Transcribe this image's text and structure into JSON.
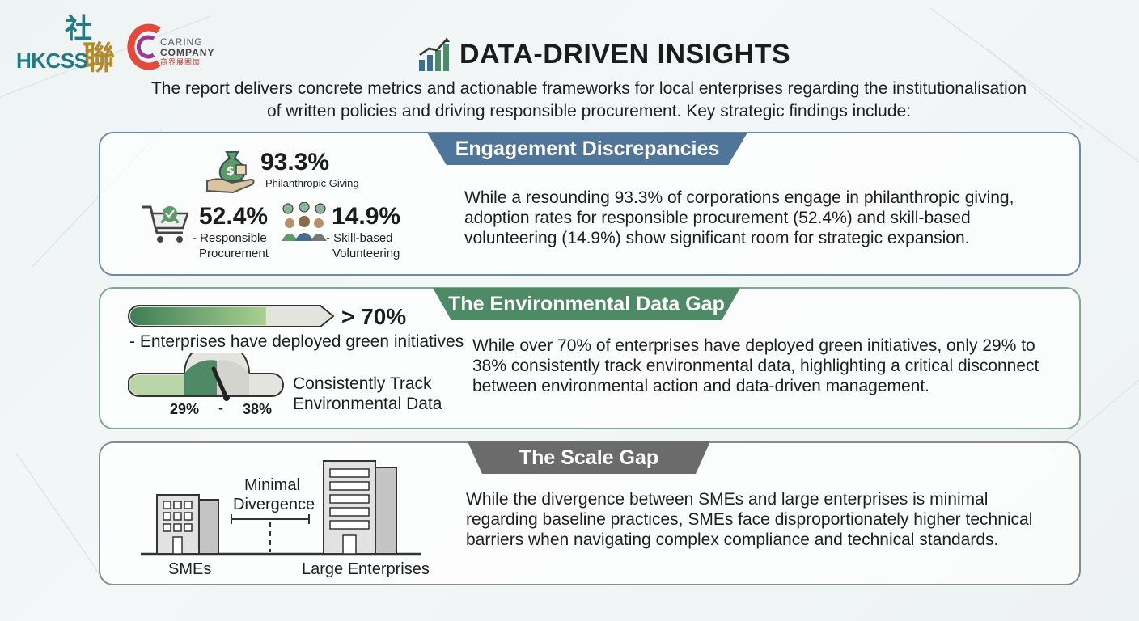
{
  "logos": {
    "hkcss": "HKCSS",
    "hkcss_chinese_1": "社",
    "hkcss_chinese_2": "聯",
    "caring_1": "CARING",
    "caring_2": "COMPANY",
    "caring_3": "商界展關懷"
  },
  "header": {
    "title": "DATA-DRIVEN INSIGHTS",
    "intro": "The report delivers concrete metrics and actionable frameworks for local enterprises regarding the institutionalisation of written policies and driving responsible procurement. Key strategic findings include:"
  },
  "engagement": {
    "heading": "Engagement Discrepancies",
    "philanthropy_value": "93.3%",
    "philanthropy_label": "- Philanthropic Giving",
    "procurement_value": "52.4%",
    "procurement_label_1": "- Responsible",
    "procurement_label_2": "Procurement",
    "volunteering_value": "14.9%",
    "volunteering_label_1": "- Skill-based",
    "volunteering_label_2": "Volunteering",
    "description": "While a resounding 93.3% of corporations engage in philanthropic giving, adoption rates for responsible procurement (52.4%) and skill-based volunteering (14.9%) show significant room for strategic expansion."
  },
  "environment": {
    "heading": "The Environmental Data Gap",
    "green_value": "> 70%",
    "green_fill_fraction": 0.7,
    "green_label": "- Enterprises have deployed green initiatives",
    "track_low": "29%",
    "track_dash": "-",
    "track_high": "38%",
    "track_label_1": "Consistently Track",
    "track_label_2": "Environmental Data",
    "description": "While over 70% of enterprises have deployed green initiatives, only 29% to 38% consistently track environmental data, highlighting a critical disconnect between environmental action and data-driven management."
  },
  "scale": {
    "heading": "The Scale Gap",
    "divergence_1": "Minimal",
    "divergence_2": "Divergence",
    "sme_label": "SMEs",
    "large_label": "Large Enterprises",
    "description": "While the divergence between SMEs and large enterprises is minimal regarding baseline practices, SMEs face disproportionately higher technical barriers when navigating complex compliance and technical standards."
  },
  "colors": {
    "blue_banner": "#4f7699",
    "green_banner": "#4e8a66",
    "grey_banner": "#6b6b6b",
    "accent_green": "#5e9a6a"
  }
}
